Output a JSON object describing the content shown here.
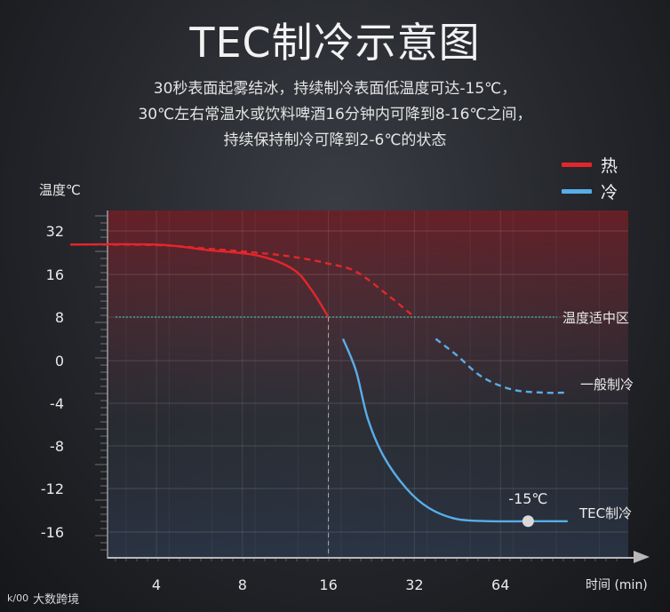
{
  "title": "TEC制冷示意图",
  "description": [
    "30秒表面起雾结冰，持续制冷表面低温度可达-15℃，",
    "30℃左右常温水或饮料啤酒16分钟内可降到8-16℃之间，",
    "持续保持制冷可降到2-6℃的状态"
  ],
  "watermark": {
    "logo": "k/00",
    "text": "大数跨境"
  },
  "colors": {
    "hot": "#e3262c",
    "cold": "#58aee8",
    "comfort": "#3fb9a8",
    "axis": "#b8b8b8"
  },
  "chart_data": {
    "type": "line",
    "title": "TEC制冷示意图",
    "ylabel": "温度℃",
    "xlabel": "时间 (min)",
    "x_scale": "log2",
    "x_ticks": [
      4,
      8,
      16,
      32,
      64
    ],
    "y_ticks": [
      32,
      16,
      8,
      0,
      -4,
      -8,
      -12,
      -16
    ],
    "legend": [
      {
        "name": "热",
        "color": "#e3262c"
      },
      {
        "name": "冷",
        "color": "#58aee8"
      }
    ],
    "legend_position": "top-right",
    "series": [
      {
        "name": "TEC制冷",
        "points": [
          [
            2,
            27
          ],
          [
            4,
            27
          ],
          [
            6,
            25
          ],
          [
            9,
            23
          ],
          [
            12,
            18
          ],
          [
            14,
            13
          ],
          [
            16,
            8
          ],
          [
            18,
            4
          ],
          [
            20,
            -1
          ],
          [
            22,
            -5.5
          ],
          [
            25,
            -9
          ],
          [
            30,
            -12
          ],
          [
            36,
            -13.8
          ],
          [
            45,
            -14.8
          ],
          [
            60,
            -15
          ],
          [
            80,
            -15
          ],
          [
            110,
            -15
          ]
        ]
      },
      {
        "name": "一般制冷",
        "points": [
          [
            2,
            27
          ],
          [
            4,
            26.8
          ],
          [
            6,
            25.5
          ],
          [
            9,
            24
          ],
          [
            12,
            22.5
          ],
          [
            16,
            20
          ],
          [
            20,
            17
          ],
          [
            26,
            12
          ],
          [
            32,
            8
          ],
          [
            38,
            4
          ],
          [
            45,
            1
          ],
          [
            55,
            -1.5
          ],
          [
            70,
            -2.7
          ],
          [
            90,
            -3
          ],
          [
            110,
            -3
          ]
        ]
      }
    ],
    "hot_color_threshold": 8,
    "reference_line": {
      "y": 8,
      "label": "温度适中区"
    },
    "reference_x": 16,
    "annotations": [
      {
        "x": 80,
        "y": -15,
        "label": "-15℃"
      }
    ],
    "series_labels": [
      "TEC制冷",
      "一般制冷"
    ]
  }
}
